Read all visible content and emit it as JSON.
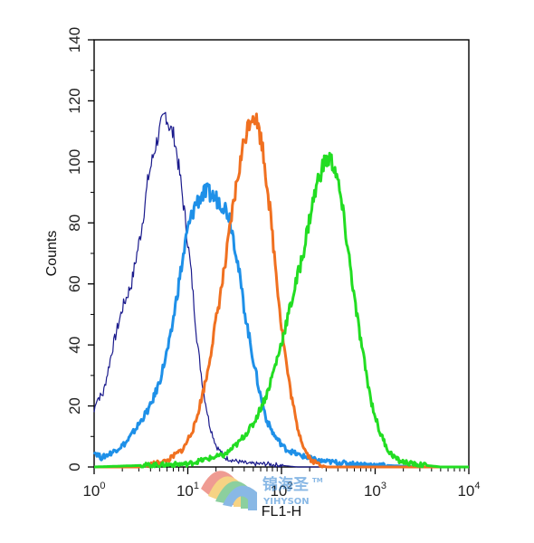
{
  "chart_data": {
    "type": "line",
    "xlabel": "FL1-H",
    "ylabel": "Counts",
    "xscale": "log",
    "xlim": [
      1,
      10000
    ],
    "ylim": [
      0,
      140
    ],
    "x_ticks": [
      {
        "base": "10",
        "exp": "0"
      },
      {
        "base": "10",
        "exp": "1"
      },
      {
        "base": "10",
        "exp": "2"
      },
      {
        "base": "10",
        "exp": "3"
      },
      {
        "base": "10",
        "exp": "4"
      }
    ],
    "y_ticks": [
      "0",
      "20",
      "40",
      "60",
      "80",
      "100",
      "120",
      "140"
    ],
    "grid": false,
    "series": [
      {
        "color": "#1a1a8c",
        "points": [
          [
            1.0,
            18
          ],
          [
            1.05,
            22
          ],
          [
            1.25,
            24
          ],
          [
            1.6,
            40
          ],
          [
            2.0,
            52
          ],
          [
            2.5,
            60
          ],
          [
            3.2,
            78
          ],
          [
            3.8,
            95
          ],
          [
            4.5,
            105
          ],
          [
            5.2,
            112
          ],
          [
            5.8,
            116
          ],
          [
            6.3,
            112
          ],
          [
            7.2,
            108
          ],
          [
            8.2,
            96
          ],
          [
            9.5,
            80
          ],
          [
            11,
            62
          ],
          [
            12.5,
            42
          ],
          [
            14.5,
            26
          ],
          [
            17,
            14
          ],
          [
            20,
            7
          ],
          [
            25,
            3
          ],
          [
            32,
            2
          ],
          [
            45,
            1
          ],
          [
            70,
            1
          ],
          [
            150,
            0
          ],
          [
            1000,
            0
          ]
        ]
      },
      {
        "color": "#1e90e8",
        "points": [
          [
            1.0,
            5
          ],
          [
            1.2,
            3
          ],
          [
            1.6,
            5
          ],
          [
            2.2,
            8
          ],
          [
            3.0,
            14
          ],
          [
            4.0,
            20
          ],
          [
            5.0,
            28
          ],
          [
            6.5,
            42
          ],
          [
            8.0,
            60
          ],
          [
            10,
            78
          ],
          [
            12,
            86
          ],
          [
            14,
            89
          ],
          [
            16,
            90
          ],
          [
            20,
            88
          ],
          [
            24,
            86
          ],
          [
            28,
            82
          ],
          [
            33,
            70
          ],
          [
            40,
            52
          ],
          [
            48,
            38
          ],
          [
            58,
            25
          ],
          [
            70,
            15
          ],
          [
            85,
            10
          ],
          [
            110,
            6
          ],
          [
            150,
            4
          ],
          [
            250,
            2
          ],
          [
            600,
            1
          ],
          [
            3000,
            0
          ]
        ]
      },
      {
        "color": "#f07020",
        "points": [
          [
            1.0,
            0
          ],
          [
            3.0,
            0
          ],
          [
            6.0,
            2
          ],
          [
            9.0,
            6
          ],
          [
            12,
            14
          ],
          [
            16,
            30
          ],
          [
            20,
            48
          ],
          [
            25,
            66
          ],
          [
            30,
            84
          ],
          [
            35,
            97
          ],
          [
            40,
            107
          ],
          [
            45,
            113
          ],
          [
            50,
            116
          ],
          [
            55,
            113
          ],
          [
            62,
            106
          ],
          [
            72,
            90
          ],
          [
            85,
            68
          ],
          [
            100,
            46
          ],
          [
            120,
            28
          ],
          [
            145,
            14
          ],
          [
            175,
            6
          ],
          [
            210,
            2
          ],
          [
            300,
            0
          ],
          [
            1000,
            0
          ]
        ]
      },
      {
        "color": "#22dd22",
        "points": [
          [
            1.0,
            0
          ],
          [
            10,
            1
          ],
          [
            18,
            3
          ],
          [
            25,
            4
          ],
          [
            35,
            8
          ],
          [
            50,
            14
          ],
          [
            70,
            24
          ],
          [
            95,
            38
          ],
          [
            130,
            55
          ],
          [
            170,
            70
          ],
          [
            210,
            85
          ],
          [
            250,
            95
          ],
          [
            290,
            100
          ],
          [
            330,
            101
          ],
          [
            380,
            97
          ],
          [
            440,
            86
          ],
          [
            520,
            70
          ],
          [
            620,
            52
          ],
          [
            750,
            36
          ],
          [
            900,
            22
          ],
          [
            1100,
            12
          ],
          [
            1400,
            5
          ],
          [
            1800,
            2
          ],
          [
            2500,
            1
          ],
          [
            5000,
            0
          ],
          [
            10000,
            0
          ]
        ]
      }
    ]
  },
  "watermark": {
    "cn": "锦海圣",
    "en": "YIHYSON",
    "tm": "TM"
  }
}
